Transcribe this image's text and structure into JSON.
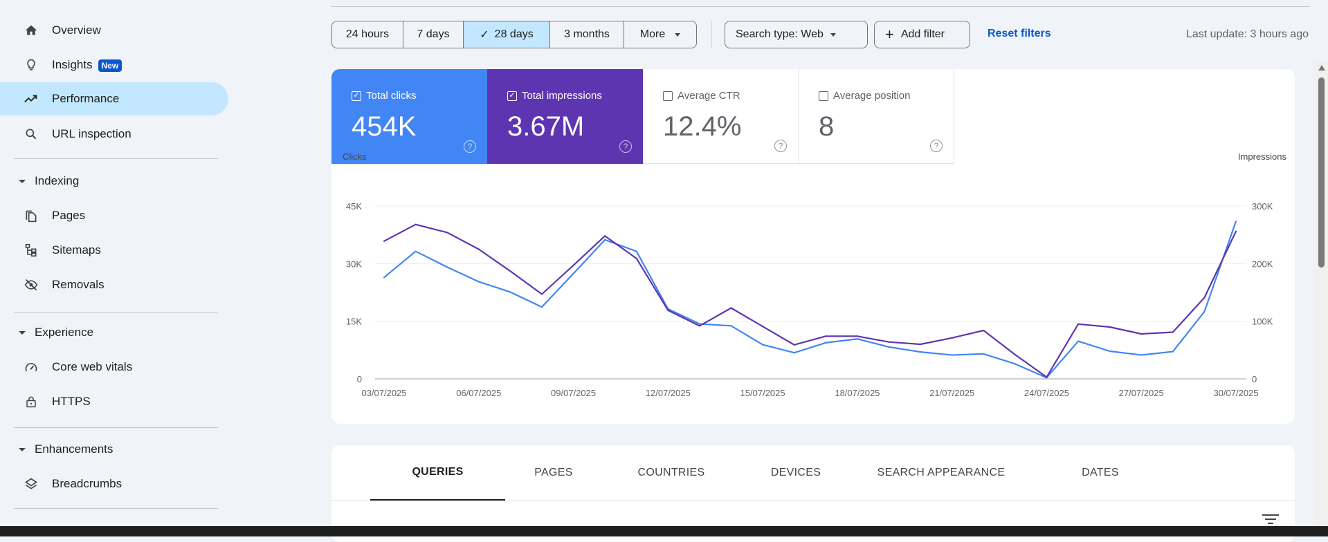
{
  "sidebar": {
    "items": [
      {
        "label": "Overview",
        "icon": "home-icon"
      },
      {
        "label": "Insights",
        "icon": "lightbulb-icon",
        "badge": "New"
      },
      {
        "label": "Performance",
        "icon": "trending-up-icon",
        "active": true
      },
      {
        "label": "URL inspection",
        "icon": "search-icon"
      }
    ],
    "sections": [
      {
        "label": "Indexing",
        "items": [
          {
            "label": "Pages",
            "icon": "pages-icon"
          },
          {
            "label": "Sitemaps",
            "icon": "sitemap-icon"
          },
          {
            "label": "Removals",
            "icon": "eye-off-icon"
          }
        ]
      },
      {
        "label": "Experience",
        "items": [
          {
            "label": "Core web vitals",
            "icon": "gauge-icon"
          },
          {
            "label": "HTTPS",
            "icon": "lock-icon"
          }
        ]
      },
      {
        "label": "Enhancements",
        "items": [
          {
            "label": "Breadcrumbs",
            "icon": "layers-icon"
          }
        ]
      }
    ]
  },
  "filters": {
    "ranges": [
      "24 hours",
      "7 days",
      "28 days",
      "3 months",
      "More"
    ],
    "selected_range": "28 days",
    "search_type": "Search type: Web",
    "add_filter": "Add filter",
    "reset": "Reset filters",
    "last_update": "Last update: 3 hours ago"
  },
  "metrics": [
    {
      "label": "Total clicks",
      "value": "454K",
      "checked": true,
      "color": "#4285f4"
    },
    {
      "label": "Total impressions",
      "value": "3.67M",
      "checked": true,
      "color": "#5e35b1"
    },
    {
      "label": "Average CTR",
      "value": "12.4%",
      "checked": false
    },
    {
      "label": "Average position",
      "value": "8",
      "checked": false
    }
  ],
  "chart_data": {
    "type": "line",
    "x": [
      "03/07/2025",
      "04/07/2025",
      "05/07/2025",
      "06/07/2025",
      "07/07/2025",
      "08/07/2025",
      "09/07/2025",
      "10/07/2025",
      "11/07/2025",
      "12/07/2025",
      "13/07/2025",
      "14/07/2025",
      "15/07/2025",
      "16/07/2025",
      "17/07/2025",
      "18/07/2025",
      "19/07/2025",
      "20/07/2025",
      "21/07/2025",
      "22/07/2025",
      "23/07/2025",
      "24/07/2025",
      "25/07/2025",
      "26/07/2025",
      "27/07/2025",
      "28/07/2025",
      "29/07/2025",
      "30/07/2025"
    ],
    "x_tick_labels": [
      "03/07/2025",
      "06/07/2025",
      "09/07/2025",
      "12/07/2025",
      "15/07/2025",
      "18/07/2025",
      "21/07/2025",
      "24/07/2025",
      "27/07/2025",
      "30/07/2025"
    ],
    "ylabel_left": "Clicks",
    "ylabel_right": "Impressions",
    "ylim_left": [
      0,
      45000
    ],
    "ylim_right": [
      0,
      300000
    ],
    "yticks_left": [
      "0",
      "15K",
      "30K",
      "45K"
    ],
    "yticks_right": [
      "0",
      "100K",
      "200K",
      "300K"
    ],
    "grid": true,
    "series": [
      {
        "axis": "left",
        "color": "#4285f4",
        "values": [
          26400,
          33200,
          29100,
          25300,
          22600,
          18700,
          27400,
          36200,
          33200,
          18200,
          14300,
          13800,
          8900,
          6800,
          9400,
          10400,
          8300,
          7000,
          6200,
          6500,
          3900,
          300,
          9800,
          7200,
          6200,
          7100,
          17500,
          41000
        ]
      },
      {
        "axis": "right",
        "color": "#5e35b1",
        "values": [
          239000,
          268000,
          254000,
          225000,
          187000,
          147000,
          197000,
          248000,
          209000,
          119000,
          92000,
          123000,
          91000,
          59000,
          74000,
          74000,
          64000,
          60000,
          71000,
          84000,
          42000,
          3000,
          95000,
          90000,
          78000,
          81000,
          141000,
          256000
        ]
      }
    ]
  },
  "tabs": [
    "QUERIES",
    "PAGES",
    "COUNTRIES",
    "DEVICES",
    "SEARCH APPEARANCE",
    "DATES"
  ],
  "active_tab": "QUERIES"
}
